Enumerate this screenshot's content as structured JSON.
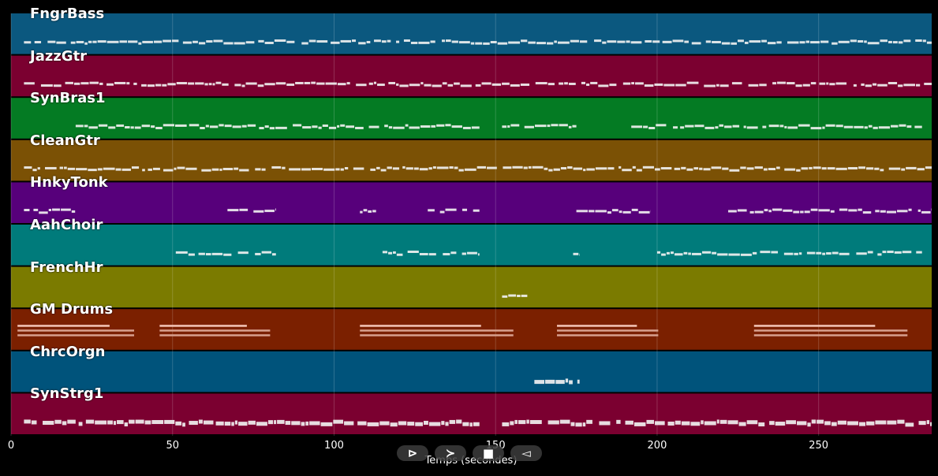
{
  "tracks": [
    {
      "name": "FngrBass",
      "color": "#0b587f"
    },
    {
      "name": "JazzGtr",
      "color": "#7b0030"
    },
    {
      "name": "SynBras1",
      "color": "#047b23"
    },
    {
      "name": "CleanGtr",
      "color": "#7b5105"
    },
    {
      "name": "HnkyTonk",
      "color": "#57007b"
    },
    {
      "name": "AahChoir",
      "color": "#007b7b"
    },
    {
      "name": "FrenchHr",
      "color": "#7b7b00"
    },
    {
      "name": "GM Drums",
      "color": "#7b2000"
    },
    {
      "name": "ChrcOrgn",
      "color": "#00537b"
    },
    {
      "name": "SynStrg1",
      "color": "#7b0030"
    }
  ],
  "axis": {
    "xlabel": "Temps (secondes)",
    "ticks": [
      "0",
      "50",
      "100",
      "150",
      "200",
      "250"
    ],
    "tick_values": [
      0,
      50,
      100,
      150,
      200,
      250
    ],
    "xlim": [
      0,
      285
    ]
  },
  "controls": [
    {
      "name": "play-icon",
      "glyph": "⊳"
    },
    {
      "name": "forward-icon",
      "glyph": "≻"
    },
    {
      "name": "stop-icon",
      "glyph": "■"
    },
    {
      "name": "back-icon",
      "glyph": "◅"
    }
  ],
  "chart_data": {
    "type": "piano-roll",
    "xlabel": "Temps (secondes)",
    "xlim": [
      0,
      285
    ],
    "grid": true,
    "series": [
      {
        "name": "FngrBass",
        "segments": [
          [
            4,
            285
          ]
        ]
      },
      {
        "name": "JazzGtr",
        "segments": [
          [
            4,
            285
          ]
        ]
      },
      {
        "name": "SynBras1",
        "segments": [
          [
            20,
            145
          ],
          [
            152,
            175
          ],
          [
            192,
            282
          ]
        ]
      },
      {
        "name": "CleanGtr",
        "segments": [
          [
            4,
            285
          ]
        ]
      },
      {
        "name": "HnkyTonk",
        "segments": [
          [
            4,
            20
          ],
          [
            67,
            82
          ],
          [
            108,
            113
          ],
          [
            129,
            145
          ],
          [
            175,
            198
          ],
          [
            222,
            285
          ]
        ]
      },
      {
        "name": "AahChoir",
        "segments": [
          [
            51,
            82
          ],
          [
            115,
            145
          ],
          [
            174,
            176
          ],
          [
            200,
            282
          ]
        ]
      },
      {
        "name": "FrenchHr",
        "segments": [
          [
            152,
            160
          ]
        ]
      },
      {
        "name": "GM Drums",
        "segments": [
          [
            2,
            40
          ],
          [
            46,
            82
          ],
          [
            108,
            158
          ],
          [
            169,
            202
          ],
          [
            230,
            280
          ]
        ]
      },
      {
        "name": "ChrcOrgn",
        "segments": [
          [
            162,
            176
          ]
        ]
      },
      {
        "name": "SynStrg1",
        "segments": [
          [
            4,
            145
          ],
          [
            152,
            285
          ]
        ]
      }
    ]
  }
}
